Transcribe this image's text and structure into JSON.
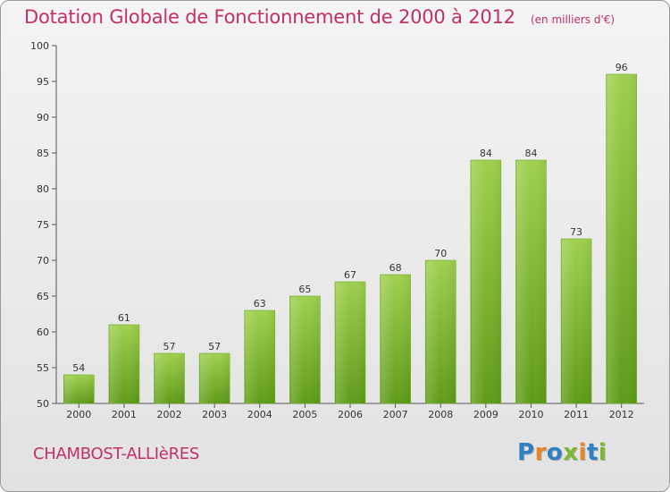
{
  "title": "Dotation Globale de Fonctionnement de 2000 à 2012",
  "subtitle": "(en milliers d'€)",
  "commune": "CHAMBOST-ALLIèRES",
  "logo": {
    "text": "Proxiti",
    "letter_colors": [
      "#2f7fc1",
      "#e8862a",
      "#2f7fc1",
      "#7cb82f",
      "#e8862a",
      "#2f7fc1",
      "#7cb82f"
    ]
  },
  "colors": {
    "title": "#c0306a",
    "bar_top": "#9fd04e",
    "bar_bottom": "#5f9c18"
  },
  "chart_data": {
    "type": "bar",
    "categories": [
      "2000",
      "2001",
      "2002",
      "2003",
      "2004",
      "2005",
      "2006",
      "2007",
      "2008",
      "2009",
      "2010",
      "2011",
      "2012"
    ],
    "values": [
      54,
      61,
      57,
      57,
      63,
      65,
      67,
      68,
      70,
      84,
      84,
      73,
      96
    ],
    "title": "Dotation Globale de Fonctionnement de 2000 à 2012",
    "ylim": [
      50,
      100
    ],
    "yticks": [
      50,
      55,
      60,
      65,
      70,
      75,
      80,
      85,
      90,
      95,
      100
    ],
    "grid": false,
    "data_labels": true
  }
}
